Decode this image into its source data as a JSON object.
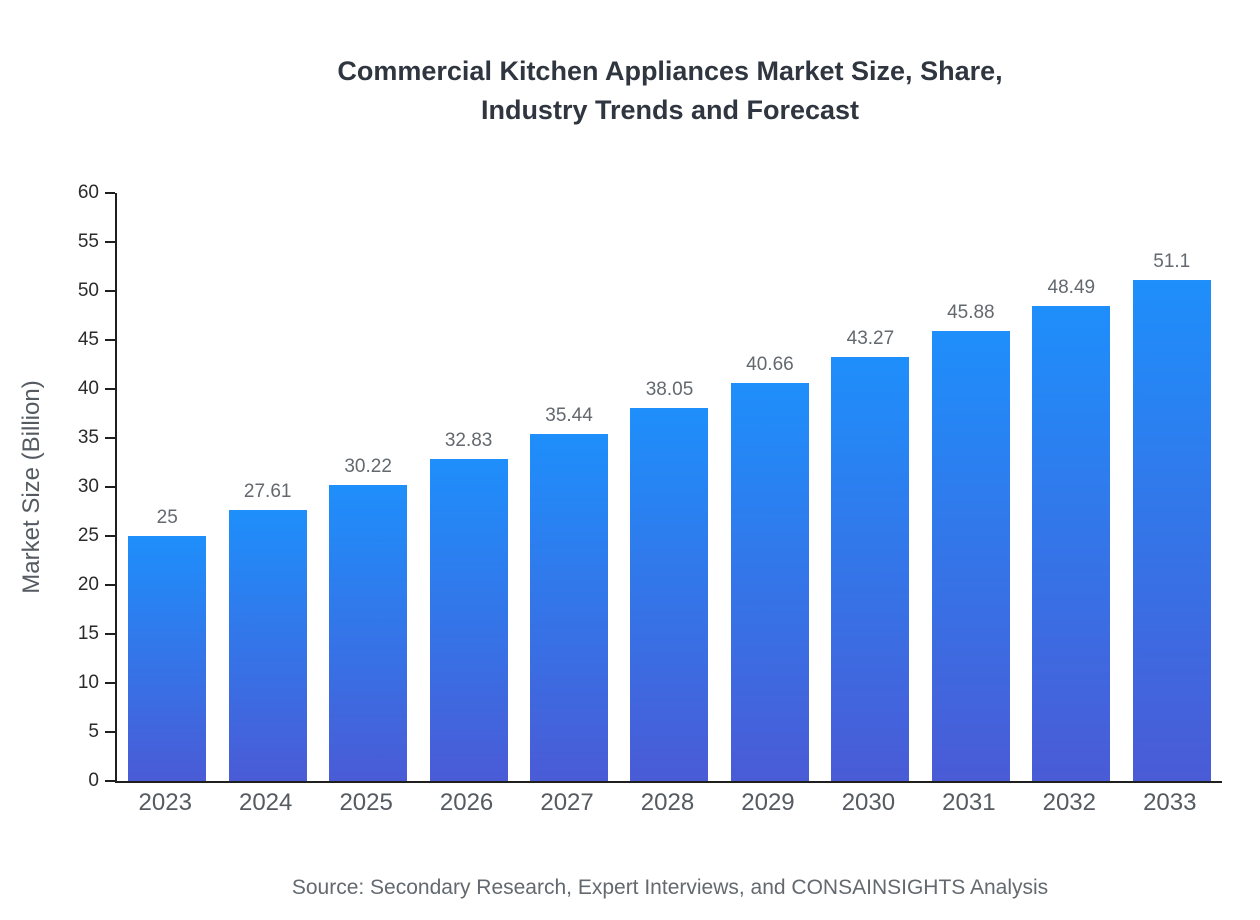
{
  "chart_data": {
    "type": "bar",
    "title": "Commercial Kitchen Appliances Market Size, Share, Industry Trends and Forecast",
    "title_lines": [
      "Commercial Kitchen Appliances Market Size, Share,",
      "Industry Trends and Forecast"
    ],
    "categories": [
      "2023",
      "2024",
      "2025",
      "2026",
      "2027",
      "2028",
      "2029",
      "2030",
      "2031",
      "2032",
      "2033"
    ],
    "values": [
      25,
      27.61,
      30.22,
      32.83,
      35.44,
      38.05,
      40.66,
      43.27,
      45.88,
      48.49,
      51.1
    ],
    "value_labels": [
      "25",
      "27.61",
      "30.22",
      "32.83",
      "35.44",
      "38.05",
      "40.66",
      "43.27",
      "45.88",
      "48.49",
      "51.1"
    ],
    "xlabel": "",
    "ylabel": "Market Size (Billion)",
    "ylim": [
      0,
      60
    ],
    "ytick_step": 5,
    "grid": false,
    "legend": false,
    "colors": {
      "bar_gradient_top": "#1e8ffb",
      "bar_gradient_bottom": "#4a5bd6",
      "axis": "#1f1f1f",
      "title_text": "#2f3640",
      "label_text": "#555b61",
      "value_text": "#63696f"
    },
    "source": "Source: Secondary Research, Expert Interviews, and CONSAINSIGHTS Analysis"
  }
}
